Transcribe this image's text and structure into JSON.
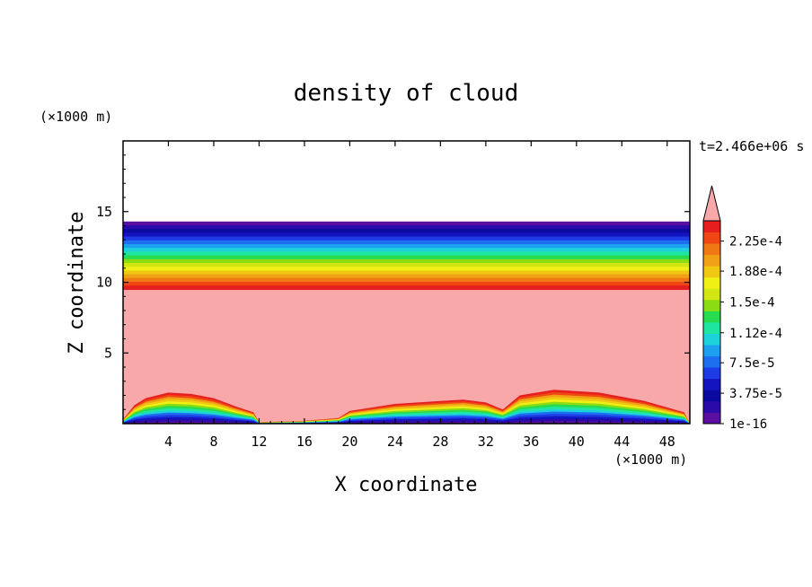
{
  "chart_data": {
    "type": "heatmap",
    "title": "density of cloud",
    "xlabel": "X coordinate",
    "ylabel": "Z coordinate",
    "x_unit": "(×1000 m)",
    "z_unit": "(×1000 m)",
    "time_label": "t=2.466e+06 s",
    "xlim": [
      0,
      50
    ],
    "zlim": [
      0,
      20
    ],
    "x_ticks": [
      4,
      8,
      12,
      16,
      20,
      24,
      28,
      32,
      36,
      40,
      44,
      48
    ],
    "z_ticks": [
      5,
      10,
      15
    ],
    "colorbar": {
      "labels": [
        "2.25e-4",
        "1.88e-4",
        "1.5e-4",
        "1.12e-4",
        "7.5e-5",
        "3.75e-5",
        "1e-16"
      ],
      "label_levels": [
        0.000225,
        0.000188,
        0.00015,
        0.000112,
        7.5e-05,
        3.75e-05,
        1e-16
      ],
      "extend": "max",
      "colors": [
        "#5a0fa0",
        "#2a0aa8",
        "#0a0aa0",
        "#1414c0",
        "#1e3ce6",
        "#1e6ef0",
        "#1ea0f0",
        "#1ed2dc",
        "#1ee6a0",
        "#28dc50",
        "#8cdc14",
        "#d2e614",
        "#f0f014",
        "#f0c814",
        "#f0a014",
        "#f07814",
        "#f04614",
        "#e61e1e"
      ],
      "over_color": "#f8a8a8"
    },
    "layers": {
      "cloud_top_km": 14.3,
      "saturated_region_top_km": 9.5,
      "surface_profile": {
        "x": [
          0,
          1,
          2,
          4,
          6,
          8,
          10,
          11.5,
          12,
          16,
          19,
          20,
          24,
          28,
          30,
          32,
          33.5,
          35,
          38,
          42,
          46,
          49.5
        ],
        "z": [
          0.3,
          1.3,
          1.8,
          2.2,
          2.1,
          1.8,
          1.2,
          0.8,
          0.1,
          0.2,
          0.4,
          0.9,
          1.4,
          1.6,
          1.7,
          1.5,
          1.0,
          2.0,
          2.4,
          2.2,
          1.6,
          0.8
        ]
      }
    }
  }
}
